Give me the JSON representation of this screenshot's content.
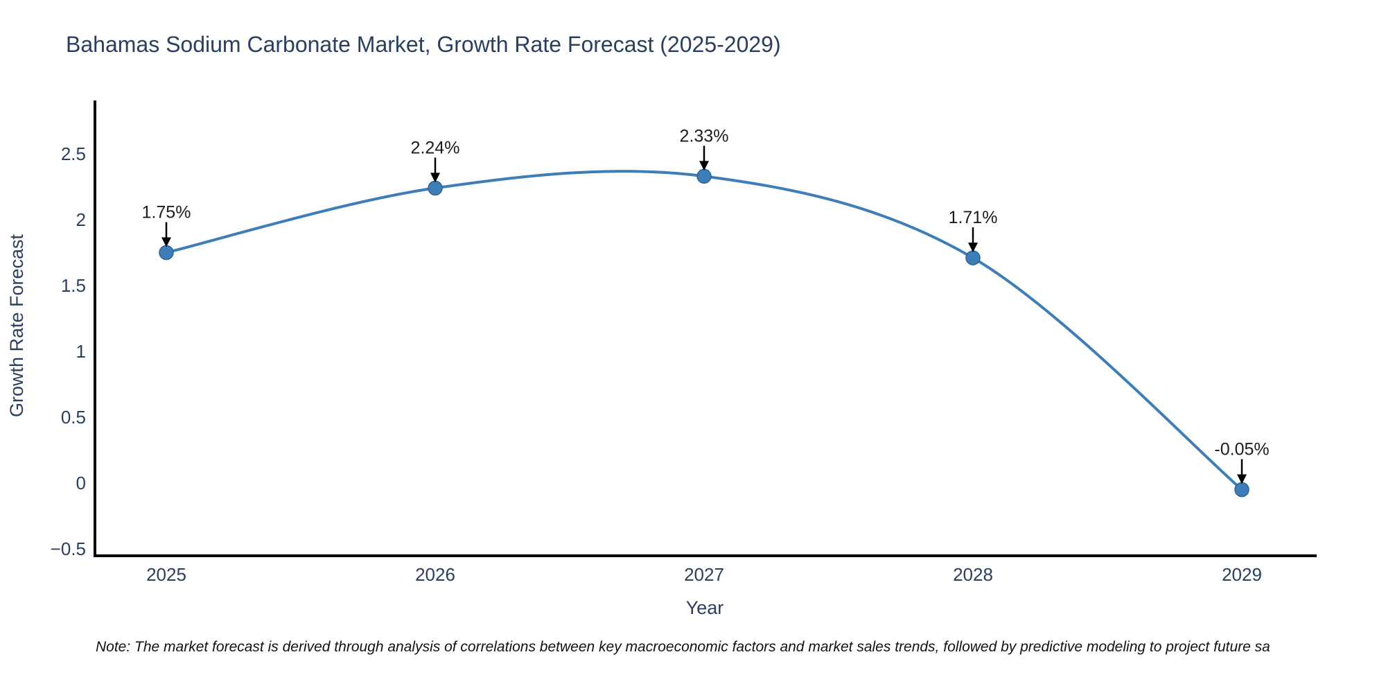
{
  "chart_data": {
    "type": "line",
    "title": "Bahamas Sodium Carbonate Market, Growth Rate Forecast (2025-2029)",
    "xlabel": "Year",
    "ylabel": "Growth Rate Forecast",
    "x": [
      2025,
      2026,
      2027,
      2028,
      2029
    ],
    "y": [
      1.75,
      2.24,
      2.33,
      1.71,
      -0.05
    ],
    "point_labels": [
      "1.75%",
      "2.24%",
      "2.33%",
      "1.71%",
      "-0.05%"
    ],
    "line_shape": "spline",
    "grid": false,
    "legend": "none",
    "ylim": [
      -0.64,
      2.85
    ],
    "yticks": [
      {
        "label": "2.5",
        "value": 2.5
      },
      {
        "label": "2",
        "value": 2.0
      },
      {
        "label": "1.5",
        "value": 1.5
      },
      {
        "label": "1",
        "value": 1.0
      },
      {
        "label": "0.5",
        "value": 0.5
      },
      {
        "label": "0",
        "value": 0.0
      },
      {
        "label": "−0.5",
        "value": -0.5
      }
    ],
    "colors": {
      "line": "#3d7eb8",
      "marker_fill": "#3d7eb8",
      "marker_edge": "#2d6394",
      "axis_line": "#000000",
      "tick_text": "#2a3f5f",
      "title_text": "#2a3f5f",
      "annotation_text": "#1c1c1c",
      "annotation_arrow": "#000000",
      "background": "#ffffff"
    },
    "note": "Note: The market forecast is derived through analysis of correlations between key macroeconomic factors and market sales trends, followed by predictive modeling to project future sa"
  }
}
